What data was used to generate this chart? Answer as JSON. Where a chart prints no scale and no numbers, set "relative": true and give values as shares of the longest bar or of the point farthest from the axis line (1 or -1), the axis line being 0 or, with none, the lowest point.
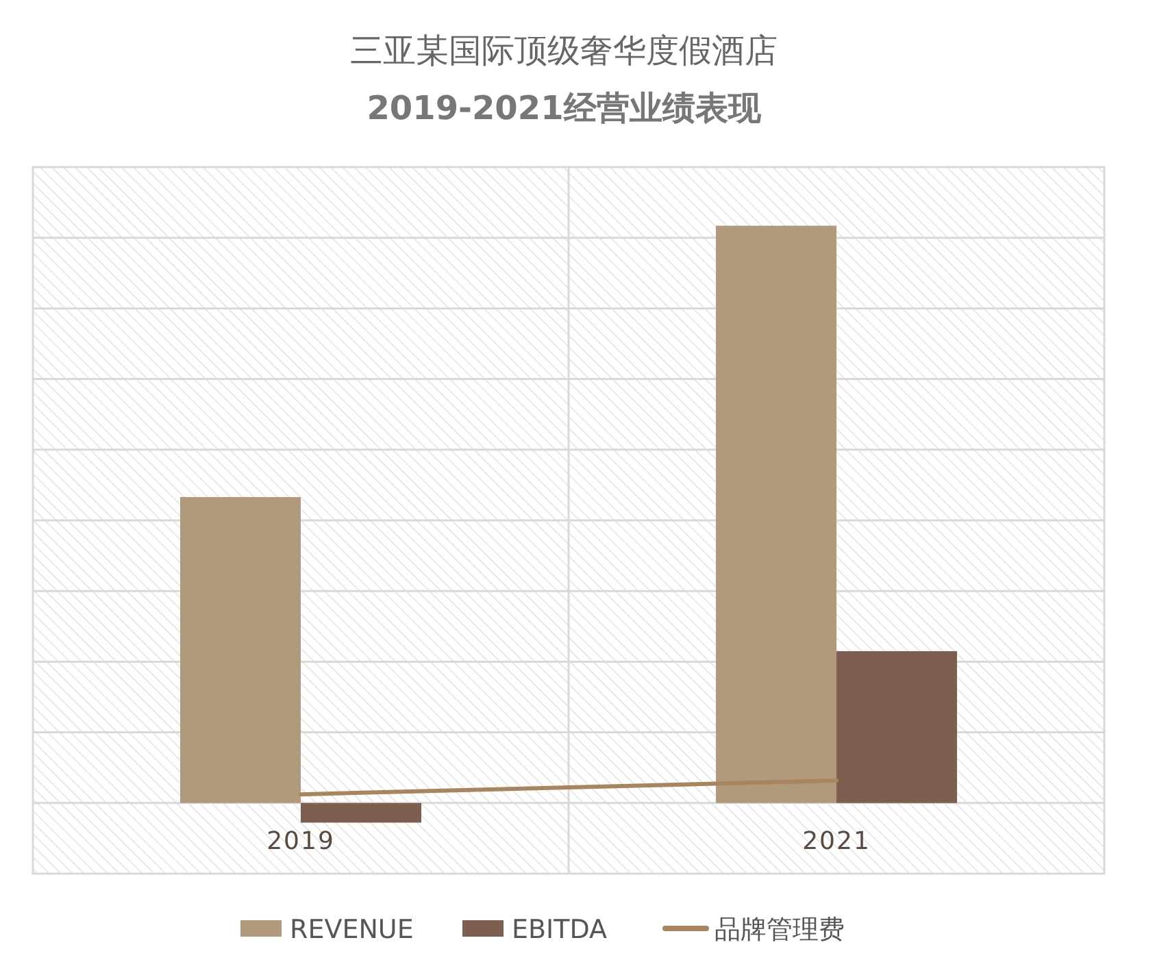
{
  "chart_data": {
    "type": "bar",
    "title": "三亚某国际顶级奢华度假酒店",
    "subtitle": "2019-2021经营业绩表现",
    "categories": [
      "2019",
      "2021"
    ],
    "relative": true,
    "grid": true,
    "legend": "bottom",
    "series": [
      {
        "name": "REVENUE",
        "color": "#b09a7b",
        "values": [
          0.53,
          1
        ]
      },
      {
        "name": "EBITDA",
        "color": "#7d5e50",
        "values": [
          -0.034,
          0.263
        ]
      },
      {
        "name": "品牌管理费",
        "type": "line",
        "color": "#a9855f",
        "values": [
          0.015,
          0.039
        ]
      }
    ]
  }
}
